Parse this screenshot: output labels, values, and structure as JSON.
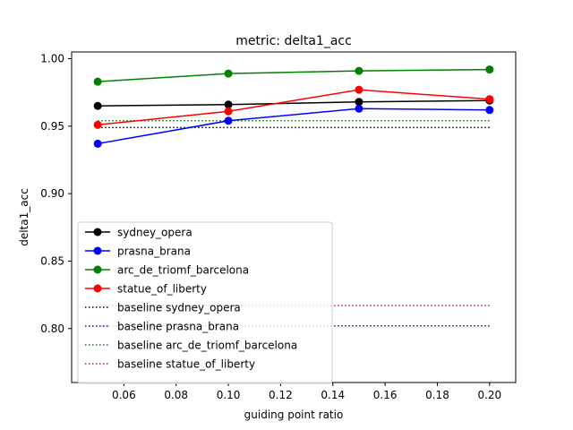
{
  "chart_data": {
    "type": "line",
    "title": "metric: delta1_acc",
    "xlabel": "guiding point ratio",
    "ylabel": "delta1_acc",
    "xlim": [
      0.04,
      0.21
    ],
    "ylim": [
      0.76,
      1.005
    ],
    "xticks": [
      0.06,
      0.08,
      0.1,
      0.12,
      0.14,
      0.16,
      0.18,
      0.2
    ],
    "xtick_labels": [
      "0.06",
      "0.08",
      "0.10",
      "0.12",
      "0.14",
      "0.16",
      "0.18",
      "0.20"
    ],
    "yticks": [
      0.8,
      0.85,
      0.9,
      0.95,
      1.0
    ],
    "ytick_labels": [
      "0.80",
      "0.85",
      "0.90",
      "0.95",
      "1.00"
    ],
    "x": [
      0.05,
      0.1,
      0.15,
      0.2
    ],
    "series": [
      {
        "name": "sydney_opera",
        "color": "#000000",
        "values": [
          0.965,
          0.966,
          0.968,
          0.969
        ]
      },
      {
        "name": "prasna_brana",
        "color": "#0000ff",
        "values": [
          0.937,
          0.954,
          0.963,
          0.962
        ]
      },
      {
        "name": "arc_de_triomf_barcelona",
        "color": "#008000",
        "values": [
          0.983,
          0.989,
          0.991,
          0.992
        ]
      },
      {
        "name": "statue_of_liberty",
        "color": "#ff0000",
        "values": [
          0.951,
          0.961,
          0.977,
          0.97
        ]
      }
    ],
    "baselines": [
      {
        "name": "baseline sydney_opera",
        "color": "#000000",
        "value": 0.949
      },
      {
        "name": "baseline prasna_brana",
        "color": "#0000ff",
        "value": 0.802
      },
      {
        "name": "baseline arc_de_triomf_barcelona",
        "color": "#008000",
        "value": 0.954
      },
      {
        "name": "baseline statue_of_liberty",
        "color": "#ff0000",
        "value": 0.817
      }
    ],
    "grid": false,
    "legend_position": "lower-left"
  }
}
